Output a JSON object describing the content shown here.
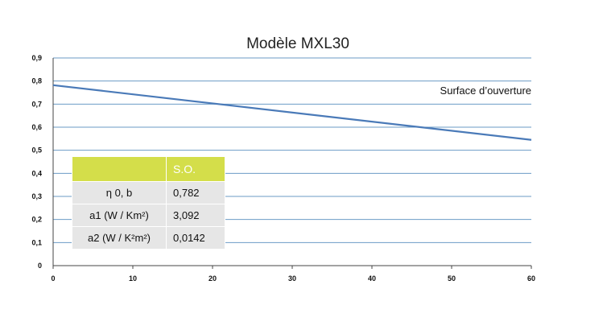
{
  "chart_data": {
    "type": "line",
    "title": "Modèle MXL30",
    "x": [
      0,
      60
    ],
    "series": [
      {
        "name": "Surface d’ouverture",
        "values": [
          0.782,
          0.545
        ],
        "color": "#4a7ab8"
      }
    ],
    "xlim": [
      0,
      60
    ],
    "ylim": [
      0,
      0.9
    ],
    "xticks": [
      "0",
      "10",
      "20",
      "30",
      "40",
      "50",
      "60"
    ],
    "yticks": [
      "0",
      "0,1",
      "0,2",
      "0,3",
      "0,4",
      "0,5",
      "0,6",
      "0,7",
      "0,8",
      "0,9"
    ],
    "grid": true,
    "gridColor": "#6b9bc6",
    "xlabel": "",
    "ylabel": ""
  },
  "table": {
    "header": [
      "",
      "S.O."
    ],
    "rows": [
      {
        "label": "η 0, b",
        "value": "0,782"
      },
      {
        "label": "a1 (W / Km²)",
        "value": "3,092"
      },
      {
        "label": "a2 (W / K²m²)",
        "value": "0,0142"
      }
    ],
    "headerColor": "#d4de4a"
  }
}
